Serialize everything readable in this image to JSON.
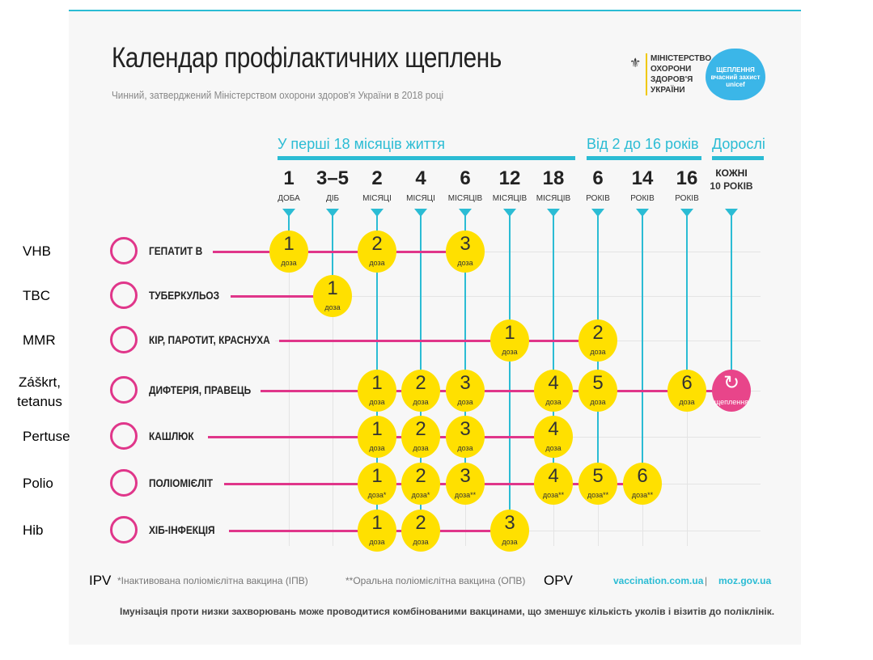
{
  "title": "Календар профілактичних щеплень",
  "subtitle": "Чинний, затверджений Міністерством охорони здоров'я України в 2018 році",
  "ministry": "МІНІСТЕРСТВО ОХОРОНИ ЗДОРОВ'Я УКРАЇНИ",
  "heart_logo": "ЩЕПЛЕННЯ вчасний захист unicef",
  "groups": [
    "У перші 18 місяців життя",
    "Від 2 до 16 років",
    "Дорослі"
  ],
  "columns": [
    {
      "n": "1",
      "u": "ДОБА"
    },
    {
      "n": "3–5",
      "u": "ДІБ"
    },
    {
      "n": "2",
      "u": "МІСЯЦІ"
    },
    {
      "n": "4",
      "u": "МІСЯЦІ"
    },
    {
      "n": "6",
      "u": "МІСЯЦІВ"
    },
    {
      "n": "12",
      "u": "МІСЯЦІВ"
    },
    {
      "n": "18",
      "u": "МІСЯЦІВ"
    },
    {
      "n": "6",
      "u": "РОКІВ"
    },
    {
      "n": "14",
      "u": "РОКІВ"
    },
    {
      "n": "16",
      "u": "РОКІВ"
    },
    {
      "n": "КОЖНІ",
      "u": "10 РОКІВ"
    }
  ],
  "rows": [
    {
      "annot": "VHB",
      "label": "ГЕПАТИТ В",
      "doses": [
        {
          "col": 0,
          "n": "1",
          "u": "доза"
        },
        {
          "col": 2,
          "n": "2",
          "u": "доза"
        },
        {
          "col": 4,
          "n": "3",
          "u": "доза"
        }
      ]
    },
    {
      "annot": "TBC",
      "label": "ТУБЕРКУЛЬОЗ",
      "doses": [
        {
          "col": 1,
          "n": "1",
          "u": "доза"
        }
      ]
    },
    {
      "annot": "MMR",
      "label": "КІР, ПАРОТИТ, КРАСНУХА",
      "doses": [
        {
          "col": 5,
          "n": "1",
          "u": "доза"
        },
        {
          "col": 7,
          "n": "2",
          "u": "доза"
        }
      ]
    },
    {
      "annot": "Záškrt, tetanus",
      "label": "ДИФТЕРІЯ, ПРАВЕЦЬ",
      "doses": [
        {
          "col": 2,
          "n": "1",
          "u": "доза"
        },
        {
          "col": 3,
          "n": "2",
          "u": "доза"
        },
        {
          "col": 4,
          "n": "3",
          "u": "доза"
        },
        {
          "col": 6,
          "n": "4",
          "u": "доза"
        },
        {
          "col": 7,
          "n": "5",
          "u": "доза"
        },
        {
          "col": 9,
          "n": "6",
          "u": "доза"
        },
        {
          "col": 10,
          "n": "↻",
          "u": "щеплення",
          "adult": true
        }
      ]
    },
    {
      "annot": "Pertuse",
      "label": "КАШЛЮК",
      "doses": [
        {
          "col": 2,
          "n": "1",
          "u": "доза"
        },
        {
          "col": 3,
          "n": "2",
          "u": "доза"
        },
        {
          "col": 4,
          "n": "3",
          "u": "доза"
        },
        {
          "col": 6,
          "n": "4",
          "u": "доза"
        }
      ]
    },
    {
      "annot": "Polio",
      "label": "ПОЛІОМІЄЛІТ",
      "doses": [
        {
          "col": 2,
          "n": "1",
          "u": "доза*"
        },
        {
          "col": 3,
          "n": "2",
          "u": "доза*"
        },
        {
          "col": 4,
          "n": "3",
          "u": "доза**"
        },
        {
          "col": 6,
          "n": "4",
          "u": "доза**"
        },
        {
          "col": 7,
          "n": "5",
          "u": "доза**"
        },
        {
          "col": 8,
          "n": "6",
          "u": "доза**"
        }
      ]
    },
    {
      "annot": "Hib",
      "label": "ХІБ-ІНФЕКЦІЯ",
      "doses": [
        {
          "col": 2,
          "n": "1",
          "u": "доза"
        },
        {
          "col": 3,
          "n": "2",
          "u": "доза"
        },
        {
          "col": 5,
          "n": "3",
          "u": "доза"
        }
      ]
    }
  ],
  "footnotes": {
    "ipv_annot": "IPV",
    "ipv": "*Інактивована поліомієлітна вакцина (ІПВ)",
    "opv": "**Оральна поліомієлітна вакцина (ОПВ)",
    "opv_annot": "OPV",
    "link1": "vaccination.com.ua",
    "sep": "|",
    "link2": "moz.gov.ua",
    "note": "Імунізація проти низки захворювань може проводитися комбінованими вакцинами, що зменшує кількість уколів і візитів до поліклінік."
  },
  "colors": {
    "cyan": "#2bbcd4",
    "pink": "#e0368a",
    "yellow": "#ffe000"
  }
}
